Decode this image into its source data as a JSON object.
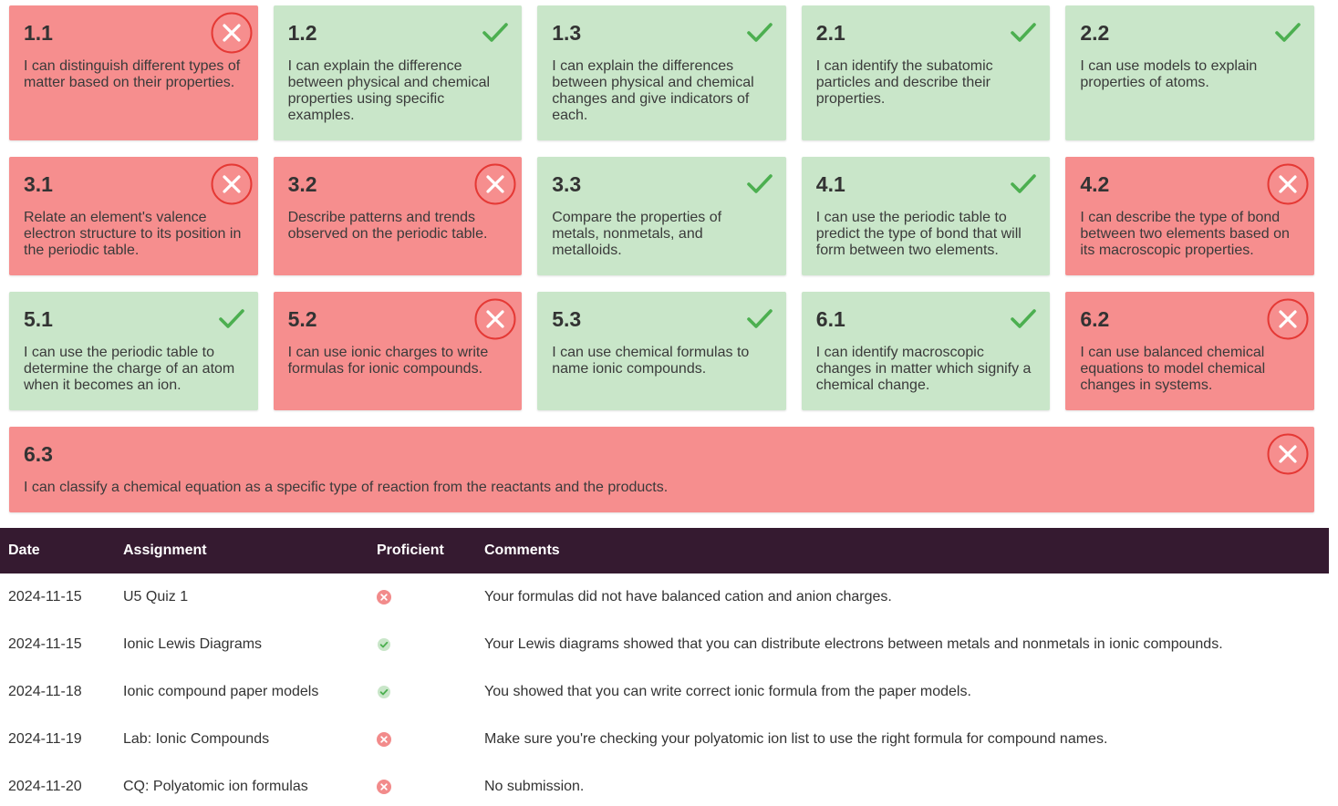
{
  "colors": {
    "proficient_bg": "#c9e6c9",
    "not_proficient_bg": "#f68e8e",
    "check": "#4caf50",
    "table_header_bg": "#351a30"
  },
  "standards": [
    [
      {
        "num": "1.1",
        "desc": "I can distinguish different types of matter based on their properties.",
        "status": "no"
      },
      {
        "num": "1.2",
        "desc": "I can explain the difference between physical and chemical properties using specific examples.",
        "status": "ok"
      },
      {
        "num": "1.3",
        "desc": "I can explain the differences between physical and chemical changes and give indicators of each.",
        "status": "ok"
      },
      {
        "num": "2.1",
        "desc": "I can identify the subatomic particles and describe their properties.",
        "status": "ok"
      },
      {
        "num": "2.2",
        "desc": "I can use models to explain properties of atoms.",
        "status": "ok"
      }
    ],
    [
      {
        "num": "3.1",
        "desc": "Relate an element's valence electron structure to its position in the periodic table.",
        "status": "no"
      },
      {
        "num": "3.2",
        "desc": "Describe patterns and trends observed on the periodic table.",
        "status": "no"
      },
      {
        "num": "3.3",
        "desc": "Compare the properties of metals, nonmetals, and metalloids.",
        "status": "ok"
      },
      {
        "num": "4.1",
        "desc": "I can use the periodic table to predict the type of bond that will form between two elements.",
        "status": "ok"
      },
      {
        "num": "4.2",
        "desc": "I can describe the type of bond between two elements based on its macroscopic properties.",
        "status": "no"
      }
    ],
    [
      {
        "num": "5.1",
        "desc": "I can use the periodic table to determine the charge of an atom when it becomes an ion.",
        "status": "ok"
      },
      {
        "num": "5.2",
        "desc": "I can use ionic charges to write formulas for ionic compounds.",
        "status": "no"
      },
      {
        "num": "5.3",
        "desc": "I can use chemical formulas to name ionic compounds.",
        "status": "ok"
      },
      {
        "num": "6.1",
        "desc": "I can identify macroscopic changes in matter which signify a chemical change.",
        "status": "ok"
      },
      {
        "num": "6.2",
        "desc": "I can use balanced chemical equations to model chemical changes in systems.",
        "status": "no"
      }
    ],
    [
      {
        "num": "6.3",
        "desc": "I can classify a chemical equation as a specific type of reaction from the reactants and the products.",
        "status": "no"
      }
    ]
  ],
  "table": {
    "headers": {
      "date": "Date",
      "assignment": "Assignment",
      "proficient": "Proficient",
      "comments": "Comments"
    },
    "rows": [
      {
        "date": "2024-11-15",
        "assignment": "U5 Quiz 1",
        "proficient": "no",
        "comments": "Your formulas did not have balanced cation and anion charges."
      },
      {
        "date": "2024-11-15",
        "assignment": "Ionic Lewis Diagrams",
        "proficient": "ok",
        "comments": "Your Lewis diagrams showed that you can distribute electrons between metals and nonmetals in ionic compounds."
      },
      {
        "date": "2024-11-18",
        "assignment": "Ionic compound paper models",
        "proficient": "ok",
        "comments": "You showed that you can write correct ionic formula from the paper models."
      },
      {
        "date": "2024-11-19",
        "assignment": "Lab: Ionic Compounds",
        "proficient": "no",
        "comments": "Make sure you're checking your polyatomic ion list to use the right formula for compound names."
      },
      {
        "date": "2024-11-20",
        "assignment": "CQ: Polyatomic ion formulas",
        "proficient": "no",
        "comments": "No submission."
      }
    ]
  }
}
